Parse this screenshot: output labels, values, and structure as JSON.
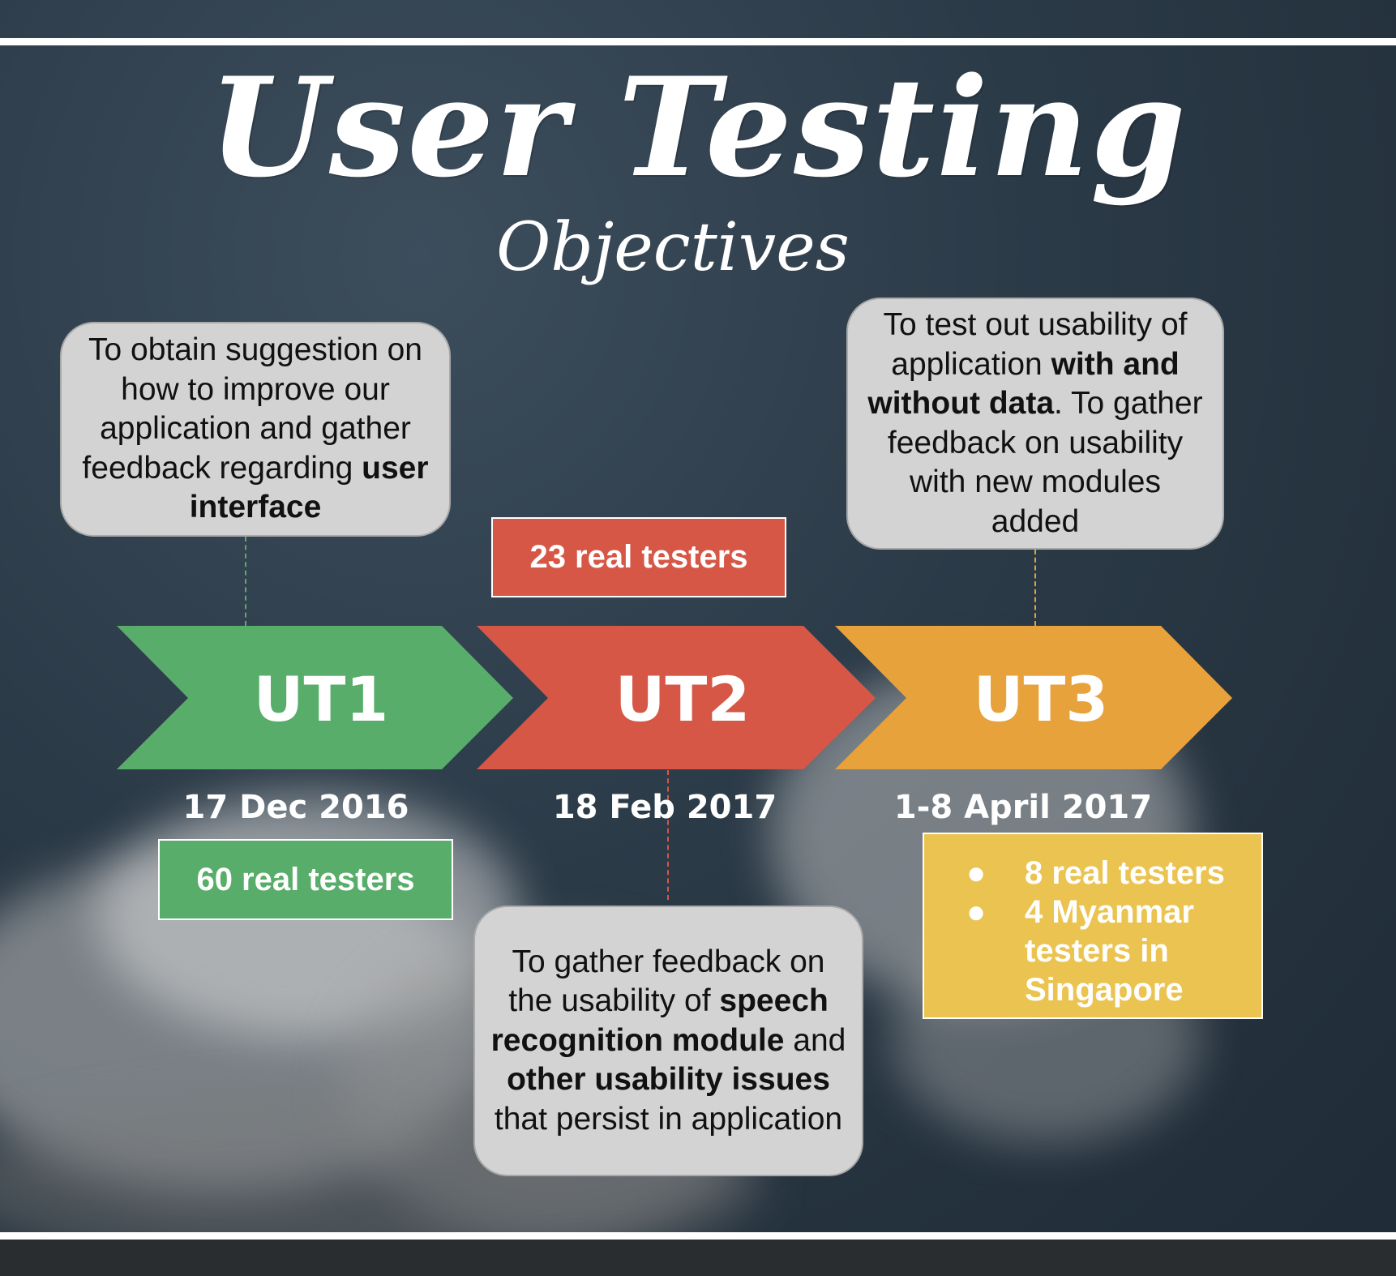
{
  "title": "User Testing",
  "subtitle": "Objectives",
  "colors": {
    "ut1": "#59ad6a",
    "ut2": "#d75747",
    "ut3": "#e8a23c",
    "ut3_list": "#ebc350",
    "bubble": "#d3d3d3"
  },
  "stages": [
    {
      "label": "UT1",
      "date": "17 Dec 2016",
      "testers": "60 real testers",
      "objective": {
        "parts": [
          {
            "text": "To obtain suggestion on how to improve our application and gather feedback regarding "
          },
          {
            "text": "user interface",
            "bold": true
          }
        ]
      }
    },
    {
      "label": "UT2",
      "date": "18 Feb 2017",
      "testers": "23 real testers",
      "objective": {
        "parts": [
          {
            "text": "To gather feedback on the usability of "
          },
          {
            "text": "speech recognition module",
            "bold": true
          },
          {
            "text": " and "
          },
          {
            "text": "other usability issues",
            "bold": true
          },
          {
            "text": " that persist in application"
          }
        ]
      }
    },
    {
      "label": "UT3",
      "date": "1-8 April 2017",
      "testers_list": [
        "8 real testers",
        "4 Myanmar testers in Singapore"
      ],
      "objective": {
        "parts": [
          {
            "text": "To test out usability of application "
          },
          {
            "text": "with and without data",
            "bold": true
          },
          {
            "text": ". To gather feedback on usability with new modules added"
          }
        ]
      }
    }
  ],
  "bullet": "●"
}
